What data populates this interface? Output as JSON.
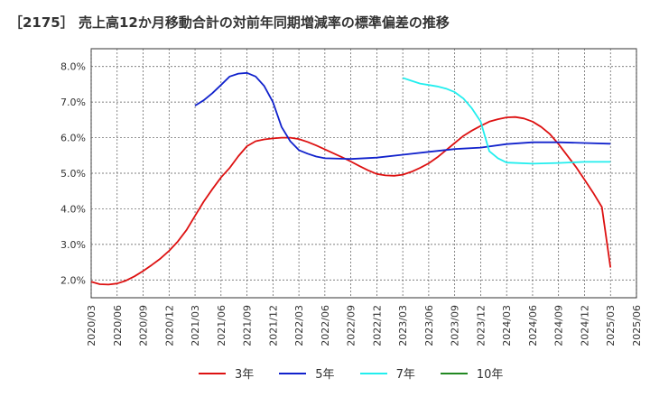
{
  "chart_data": {
    "type": "line",
    "title": "［2175］ 売上高12か月移動合計の対前年同期増減率の標準偏差の推移",
    "xlabel": "",
    "ylabel": "",
    "ylim": [
      1.5,
      8.5
    ],
    "y_ticks": [
      {
        "value": 2.0,
        "label": "2.0%"
      },
      {
        "value": 3.0,
        "label": "3.0%"
      },
      {
        "value": 4.0,
        "label": "4.0%"
      },
      {
        "value": 5.0,
        "label": "5.0%"
      },
      {
        "value": 6.0,
        "label": "6.0%"
      },
      {
        "value": 7.0,
        "label": "7.0%"
      },
      {
        "value": 8.0,
        "label": "8.0%"
      }
    ],
    "x_ticks": [
      "2020/03",
      "2020/06",
      "2020/09",
      "2020/12",
      "2021/03",
      "2021/06",
      "2021/09",
      "2021/12",
      "2022/03",
      "2022/06",
      "2022/09",
      "2022/12",
      "2023/03",
      "2023/06",
      "2023/09",
      "2023/12",
      "2024/03",
      "2024/06",
      "2024/09",
      "2024/12",
      "2025/03",
      "2025/06"
    ],
    "x_range": [
      "2020/03",
      "2025/06"
    ],
    "grid": true,
    "legend_position": "bottom",
    "series": [
      {
        "name": "3年",
        "color": "#dd1111",
        "x": [
          "2020/03",
          "2020/04",
          "2020/05",
          "2020/06",
          "2020/07",
          "2020/08",
          "2020/09",
          "2020/10",
          "2020/11",
          "2020/12",
          "2021/01",
          "2021/02",
          "2021/03",
          "2021/04",
          "2021/05",
          "2021/06",
          "2021/07",
          "2021/08",
          "2021/09",
          "2021/10",
          "2021/11",
          "2021/12",
          "2022/01",
          "2022/02",
          "2022/03",
          "2022/04",
          "2022/05",
          "2022/06",
          "2022/07",
          "2022/08",
          "2022/09",
          "2022/10",
          "2022/11",
          "2022/12",
          "2023/01",
          "2023/02",
          "2023/03",
          "2023/04",
          "2023/05",
          "2023/06",
          "2023/07",
          "2023/08",
          "2023/09",
          "2023/10",
          "2023/11",
          "2023/12",
          "2024/01",
          "2024/02",
          "2024/03",
          "2024/04",
          "2024/05",
          "2024/06",
          "2024/07",
          "2024/08",
          "2024/09",
          "2024/10",
          "2024/11",
          "2024/12",
          "2025/01",
          "2025/02",
          "2025/03"
        ],
        "y": [
          1.95,
          1.88,
          1.87,
          1.9,
          1.98,
          2.1,
          2.25,
          2.42,
          2.6,
          2.82,
          3.08,
          3.4,
          3.8,
          4.2,
          4.55,
          4.88,
          5.15,
          5.48,
          5.76,
          5.9,
          5.95,
          5.98,
          6.0,
          6.0,
          5.96,
          5.88,
          5.78,
          5.67,
          5.56,
          5.45,
          5.33,
          5.2,
          5.08,
          4.98,
          4.94,
          4.93,
          4.96,
          5.04,
          5.15,
          5.28,
          5.45,
          5.65,
          5.85,
          6.05,
          6.2,
          6.33,
          6.45,
          6.52,
          6.57,
          6.58,
          6.54,
          6.45,
          6.3,
          6.1,
          5.82,
          5.5,
          5.18,
          4.82,
          4.45,
          4.05,
          2.35
        ]
      },
      {
        "name": "5年",
        "color": "#1122cc",
        "x": [
          "2021/03",
          "2021/04",
          "2021/05",
          "2021/06",
          "2021/07",
          "2021/08",
          "2021/09",
          "2021/10",
          "2021/11",
          "2021/12",
          "2022/01",
          "2022/02",
          "2022/03",
          "2022/04",
          "2022/05",
          "2022/06",
          "2022/09",
          "2022/12",
          "2023/03",
          "2023/06",
          "2023/09",
          "2023/12",
          "2024/03",
          "2024/06",
          "2024/09",
          "2024/12",
          "2025/03"
        ],
        "y": [
          6.9,
          7.05,
          7.25,
          7.48,
          7.72,
          7.8,
          7.82,
          7.72,
          7.45,
          7.0,
          6.3,
          5.9,
          5.65,
          5.55,
          5.47,
          5.42,
          5.4,
          5.44,
          5.52,
          5.6,
          5.68,
          5.72,
          5.82,
          5.87,
          5.87,
          5.85,
          5.83
        ]
      },
      {
        "name": "7年",
        "color": "#22eeee",
        "x": [
          "2023/03",
          "2023/04",
          "2023/05",
          "2023/06",
          "2023/07",
          "2023/08",
          "2023/09",
          "2023/10",
          "2023/11",
          "2023/12",
          "2024/01",
          "2024/02",
          "2024/03",
          "2024/06",
          "2024/09",
          "2024/12",
          "2025/03"
        ],
        "y": [
          7.68,
          7.6,
          7.52,
          7.48,
          7.44,
          7.38,
          7.28,
          7.1,
          6.82,
          6.45,
          5.62,
          5.42,
          5.3,
          5.27,
          5.29,
          5.32,
          5.32
        ]
      },
      {
        "name": "10年",
        "color": "#228822",
        "x": [],
        "y": []
      }
    ]
  }
}
